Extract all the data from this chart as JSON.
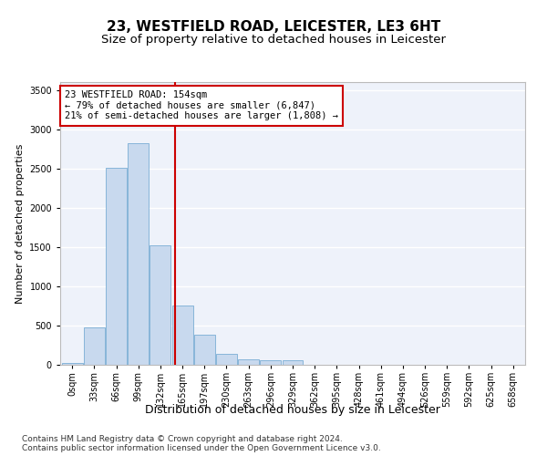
{
  "title1": "23, WESTFIELD ROAD, LEICESTER, LE3 6HT",
  "title2": "Size of property relative to detached houses in Leicester",
  "xlabel": "Distribution of detached houses by size in Leicester",
  "ylabel": "Number of detached properties",
  "bin_labels": [
    "0sqm",
    "33sqm",
    "66sqm",
    "99sqm",
    "132sqm",
    "165sqm",
    "197sqm",
    "230sqm",
    "263sqm",
    "296sqm",
    "329sqm",
    "362sqm",
    "395sqm",
    "428sqm",
    "461sqm",
    "494sqm",
    "526sqm",
    "559sqm",
    "592sqm",
    "625sqm",
    "658sqm"
  ],
  "bar_heights": [
    25,
    480,
    2510,
    2820,
    1520,
    750,
    385,
    140,
    70,
    55,
    55,
    0,
    0,
    0,
    0,
    0,
    0,
    0,
    0,
    0,
    0
  ],
  "bar_color": "#c8d9ee",
  "bar_edge_color": "#7aadd4",
  "vline_color": "#cc0000",
  "annotation_text": "23 WESTFIELD ROAD: 154sqm\n← 79% of detached houses are smaller (6,847)\n21% of semi-detached houses are larger (1,808) →",
  "annotation_box_color": "#cc0000",
  "ylim": [
    0,
    3600
  ],
  "yticks": [
    0,
    500,
    1000,
    1500,
    2000,
    2500,
    3000,
    3500
  ],
  "footer1": "Contains HM Land Registry data © Crown copyright and database right 2024.",
  "footer2": "Contains public sector information licensed under the Open Government Licence v3.0.",
  "bg_color": "#eef2fa",
  "grid_color": "#ffffff",
  "title1_fontsize": 11,
  "title2_fontsize": 9.5,
  "ylabel_fontsize": 8,
  "xlabel_fontsize": 9,
  "tick_fontsize": 7,
  "annotation_fontsize": 7.5,
  "footer_fontsize": 6.5
}
